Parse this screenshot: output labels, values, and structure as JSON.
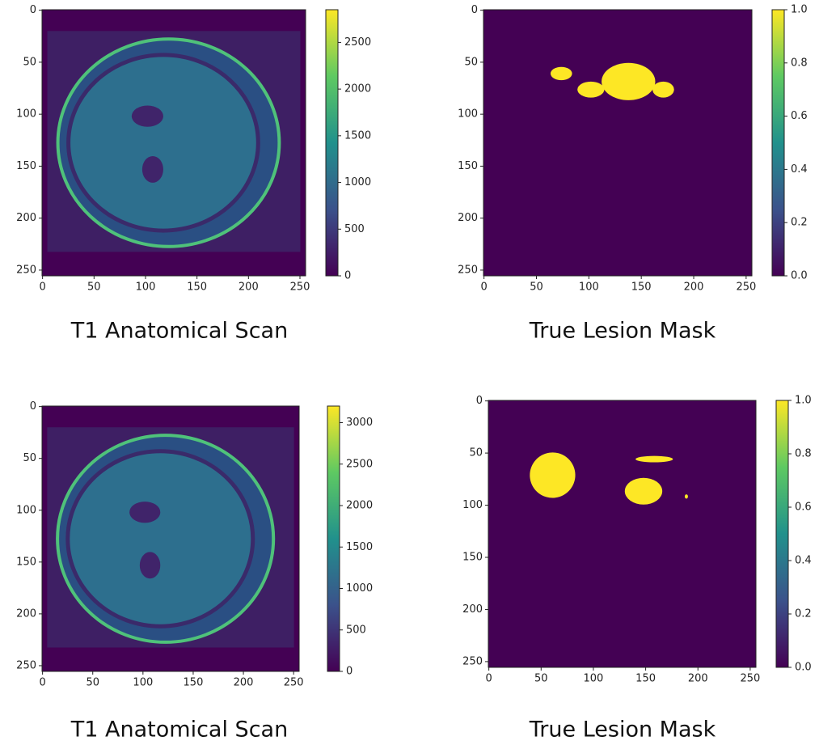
{
  "chart_data": [
    {
      "type": "image",
      "caption": "T1 Anatomical Scan",
      "kind": "scan",
      "xlim": [
        -0.5,
        255.5
      ],
      "ylim": [
        255.5,
        -0.5
      ],
      "xticks": [
        0,
        50,
        100,
        150,
        200,
        250
      ],
      "yticks": [
        0,
        50,
        100,
        150,
        200,
        250
      ],
      "colorbar": {
        "lim": [
          0,
          2850
        ],
        "ticks": [
          0,
          500,
          1000,
          1500,
          2000,
          2500
        ]
      }
    },
    {
      "type": "image",
      "caption": "True Lesion Mask",
      "kind": "mask",
      "xlim": [
        -0.5,
        255.5
      ],
      "ylim": [
        255.5,
        -0.5
      ],
      "xticks": [
        0,
        50,
        100,
        150,
        200,
        250
      ],
      "yticks": [
        0,
        50,
        100,
        150,
        200,
        250
      ],
      "colorbar": {
        "lim": [
          0,
          1
        ],
        "ticks": [
          {
            "value": 0,
            "label": "0.0"
          },
          0.2,
          0.4,
          0.6,
          0.8,
          {
            "value": 1,
            "label": "1.0"
          }
        ]
      }
    },
    {
      "type": "image",
      "caption": "T1 Anatomical Scan",
      "kind": "scan",
      "xlim": [
        -0.5,
        255.5
      ],
      "ylim": [
        255.5,
        -0.5
      ],
      "xticks": [
        0,
        50,
        100,
        150,
        200,
        250
      ],
      "yticks": [
        0,
        50,
        100,
        150,
        200,
        250
      ],
      "colorbar": {
        "lim": [
          0,
          3200
        ],
        "ticks": [
          0,
          500,
          1000,
          1500,
          2000,
          2500,
          3000
        ]
      }
    },
    {
      "type": "image",
      "caption": "True Lesion Mask",
      "kind": "mask2",
      "xlim": [
        -0.5,
        255.5
      ],
      "ylim": [
        255.5,
        -0.5
      ],
      "xticks": [
        0,
        50,
        100,
        150,
        200,
        250
      ],
      "yticks": [
        0,
        50,
        100,
        150,
        200,
        250
      ],
      "colorbar": {
        "lim": [
          0,
          1
        ],
        "ticks": [
          {
            "value": 0,
            "label": "0.0"
          },
          0.2,
          0.4,
          0.6,
          0.8,
          {
            "value": 1,
            "label": "1.0"
          }
        ]
      }
    }
  ]
}
